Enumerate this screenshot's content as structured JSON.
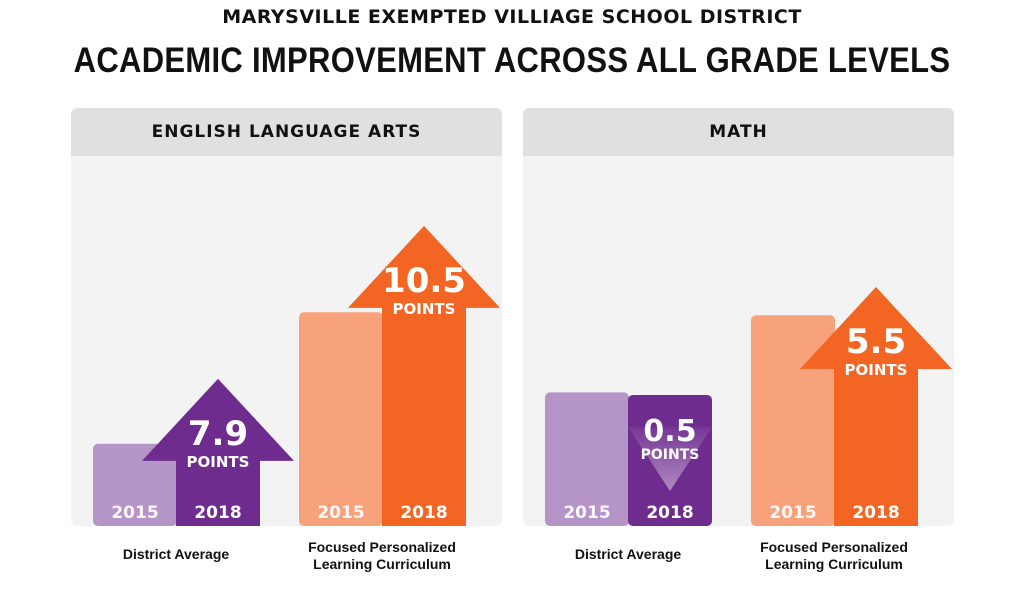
{
  "header": {
    "supertitle": "MARYSVILLE EXEMPTED VILLIAGE SCHOOL DISTRICT",
    "title": "ACADEMIC IMPROVEMENT ACROSS ALL GRADE LEVELS"
  },
  "colors": {
    "district_2015": "#b595c7",
    "district_2018": "#6e2c8e",
    "focused_2015": "#f8a27c",
    "focused_2018": "#f26522",
    "panel_bg": "#f3f3f3",
    "header_bg": "#e0e0e0"
  },
  "chart_data": [
    {
      "type": "bar",
      "title": "ENGLISH LANGUAGE ARTS",
      "categories": [
        "District Average",
        "Focused Personalized Learning Curriculum"
      ],
      "category_lines": [
        [
          "District Average"
        ],
        [
          "Focused Personalized",
          "Learning Curriculum"
        ]
      ],
      "series": [
        {
          "name": "2015"
        },
        {
          "name": "2018"
        }
      ],
      "bars": [
        {
          "category": "District Average",
          "year": "2015",
          "value": 10
        },
        {
          "category": "District Average",
          "year": "2018",
          "value": 17.9
        },
        {
          "category": "Focused Personalized Learning Curriculum",
          "year": "2015",
          "value": 26
        },
        {
          "category": "Focused Personalized Learning Curriculum",
          "year": "2018",
          "value": 36.5
        }
      ],
      "changes": [
        {
          "category": "District Average",
          "direction": "up",
          "value": "7.9",
          "unit": "POINTS"
        },
        {
          "category": "Focused Personalized Learning Curriculum",
          "direction": "up",
          "value": "10.5",
          "unit": "POINTS"
        }
      ],
      "ylim": [
        0,
        45
      ]
    },
    {
      "type": "bar",
      "title": "MATH",
      "categories": [
        "District Average",
        "Focused Personalized Learning Curriculum"
      ],
      "category_lines": [
        [
          "District Average"
        ],
        [
          "Focused Personalized",
          "Learning Curriculum"
        ]
      ],
      "series": [
        {
          "name": "2015"
        },
        {
          "name": "2018"
        }
      ],
      "bars": [
        {
          "category": "District Average",
          "year": "2015",
          "value": 26
        },
        {
          "category": "District Average",
          "year": "2018",
          "value": 25.5
        },
        {
          "category": "Focused Personalized Learning Curriculum",
          "year": "2015",
          "value": 41
        },
        {
          "category": "Focused Personalized Learning Curriculum",
          "year": "2018",
          "value": 46.5
        }
      ],
      "changes": [
        {
          "category": "District Average",
          "direction": "down",
          "value": "0.5",
          "unit": "POINTS"
        },
        {
          "category": "Focused Personalized Learning Curriculum",
          "direction": "up",
          "value": "5.5",
          "unit": "POINTS"
        }
      ],
      "ylim": [
        0,
        72
      ]
    }
  ]
}
